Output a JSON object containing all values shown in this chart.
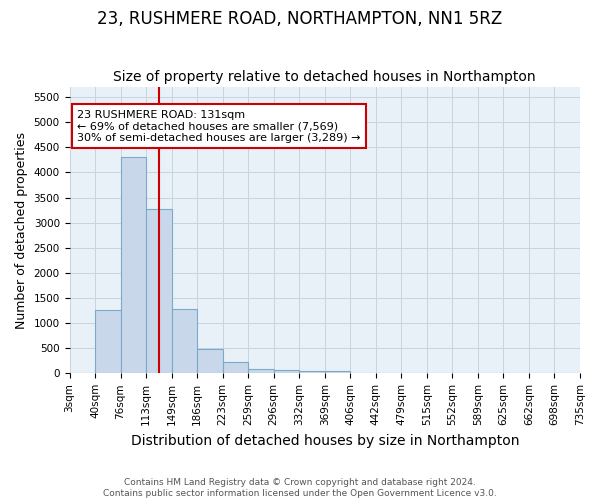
{
  "title": "23, RUSHMERE ROAD, NORTHAMPTON, NN1 5RZ",
  "subtitle": "Size of property relative to detached houses in Northampton",
  "xlabel": "Distribution of detached houses by size in Northampton",
  "ylabel": "Number of detached properties",
  "footnote1": "Contains HM Land Registry data © Crown copyright and database right 2024.",
  "footnote2": "Contains public sector information licensed under the Open Government Licence v3.0.",
  "bin_labels": [
    "3sqm",
    "40sqm",
    "76sqm",
    "113sqm",
    "149sqm",
    "186sqm",
    "223sqm",
    "259sqm",
    "296sqm",
    "332sqm",
    "369sqm",
    "406sqm",
    "442sqm",
    "479sqm",
    "515sqm",
    "552sqm",
    "589sqm",
    "625sqm",
    "662sqm",
    "698sqm",
    "735sqm"
  ],
  "bar_values": [
    0,
    1270,
    4300,
    3280,
    1290,
    490,
    220,
    90,
    60,
    50,
    55,
    0,
    0,
    0,
    0,
    0,
    0,
    0,
    0,
    0
  ],
  "bar_color": "#c8d8ea",
  "bar_edgecolor": "#7aaac8",
  "vline_color": "#cc0000",
  "annotation_text": "23 RUSHMERE ROAD: 131sqm\n← 69% of detached houses are smaller (7,569)\n30% of semi-detached houses are larger (3,289) →",
  "annotation_box_color": "#ffffff",
  "annotation_border_color": "#cc0000",
  "ylim": [
    0,
    5700
  ],
  "yticks": [
    0,
    500,
    1000,
    1500,
    2000,
    2500,
    3000,
    3500,
    4000,
    4500,
    5000,
    5500
  ],
  "ax_facecolor": "#e8f0f8",
  "background_color": "#ffffff",
  "grid_color": "#c8d4e0",
  "title_fontsize": 12,
  "subtitle_fontsize": 10,
  "xlabel_fontsize": 10,
  "ylabel_fontsize": 9,
  "tick_fontsize": 7.5,
  "footnote_fontsize": 6.5
}
